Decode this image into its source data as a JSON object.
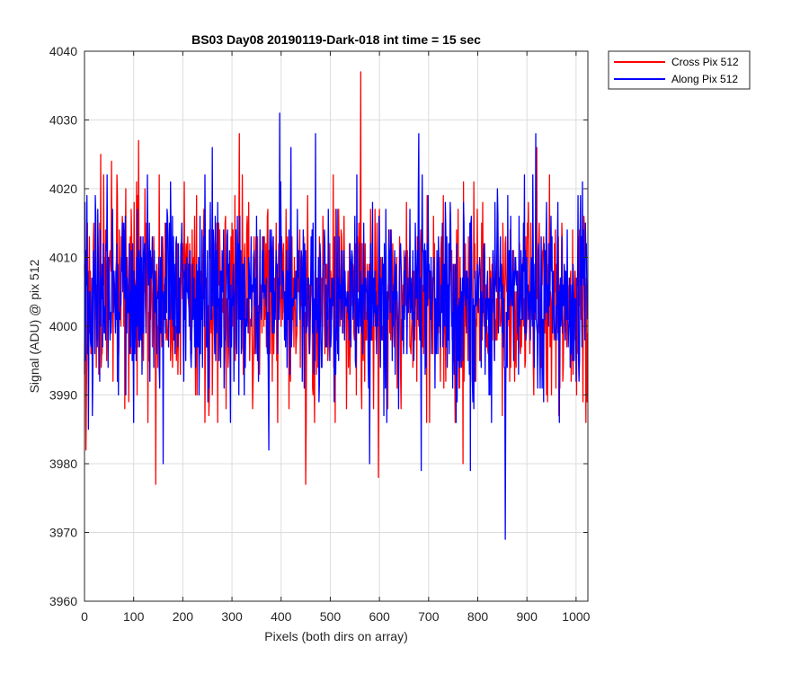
{
  "chart_data": {
    "type": "line",
    "title": "BS03 Day08 20190119-Dark-018 int time = 15 sec",
    "xlabel": "Pixels (both dirs on array)",
    "ylabel": "Signal (ADU) @ pix 512",
    "xlim": [
      0,
      1024
    ],
    "ylim": [
      3960,
      4040
    ],
    "xticks": [
      0,
      100,
      200,
      300,
      400,
      500,
      600,
      700,
      800,
      900,
      1000
    ],
    "yticks": [
      3960,
      3970,
      3980,
      3990,
      4000,
      4010,
      4020,
      4030,
      4040
    ],
    "grid": true,
    "legend_position": "outside-top-right",
    "series": [
      {
        "name": "Cross Pix 512",
        "color": "#ff0000",
        "noise": {
          "count": 1024,
          "mean": 4004,
          "std": 7,
          "seed": 17
        },
        "peaks": [
          [
            3,
            3982
          ],
          [
            33,
            4025
          ],
          [
            55,
            4024
          ],
          [
            110,
            4027
          ],
          [
            145,
            3977
          ],
          [
            315,
            4028
          ],
          [
            450,
            3977
          ],
          [
            562,
            4037
          ],
          [
            598,
            3978
          ],
          [
            770,
            3980
          ],
          [
            920,
            4026
          ],
          [
            1020,
            3986
          ]
        ]
      },
      {
        "name": "Along Pix 512",
        "color": "#0000ff",
        "noise": {
          "count": 1024,
          "mean": 4004,
          "std": 7,
          "seed": 91
        },
        "peaks": [
          [
            8,
            3985
          ],
          [
            160,
            3980
          ],
          [
            260,
            4026
          ],
          [
            375,
            3982
          ],
          [
            397,
            4031
          ],
          [
            420,
            4026
          ],
          [
            470,
            4028
          ],
          [
            580,
            3980
          ],
          [
            680,
            4028
          ],
          [
            685,
            3979
          ],
          [
            785,
            3979
          ],
          [
            856,
            3969
          ],
          [
            918,
            4028
          ]
        ]
      }
    ]
  }
}
